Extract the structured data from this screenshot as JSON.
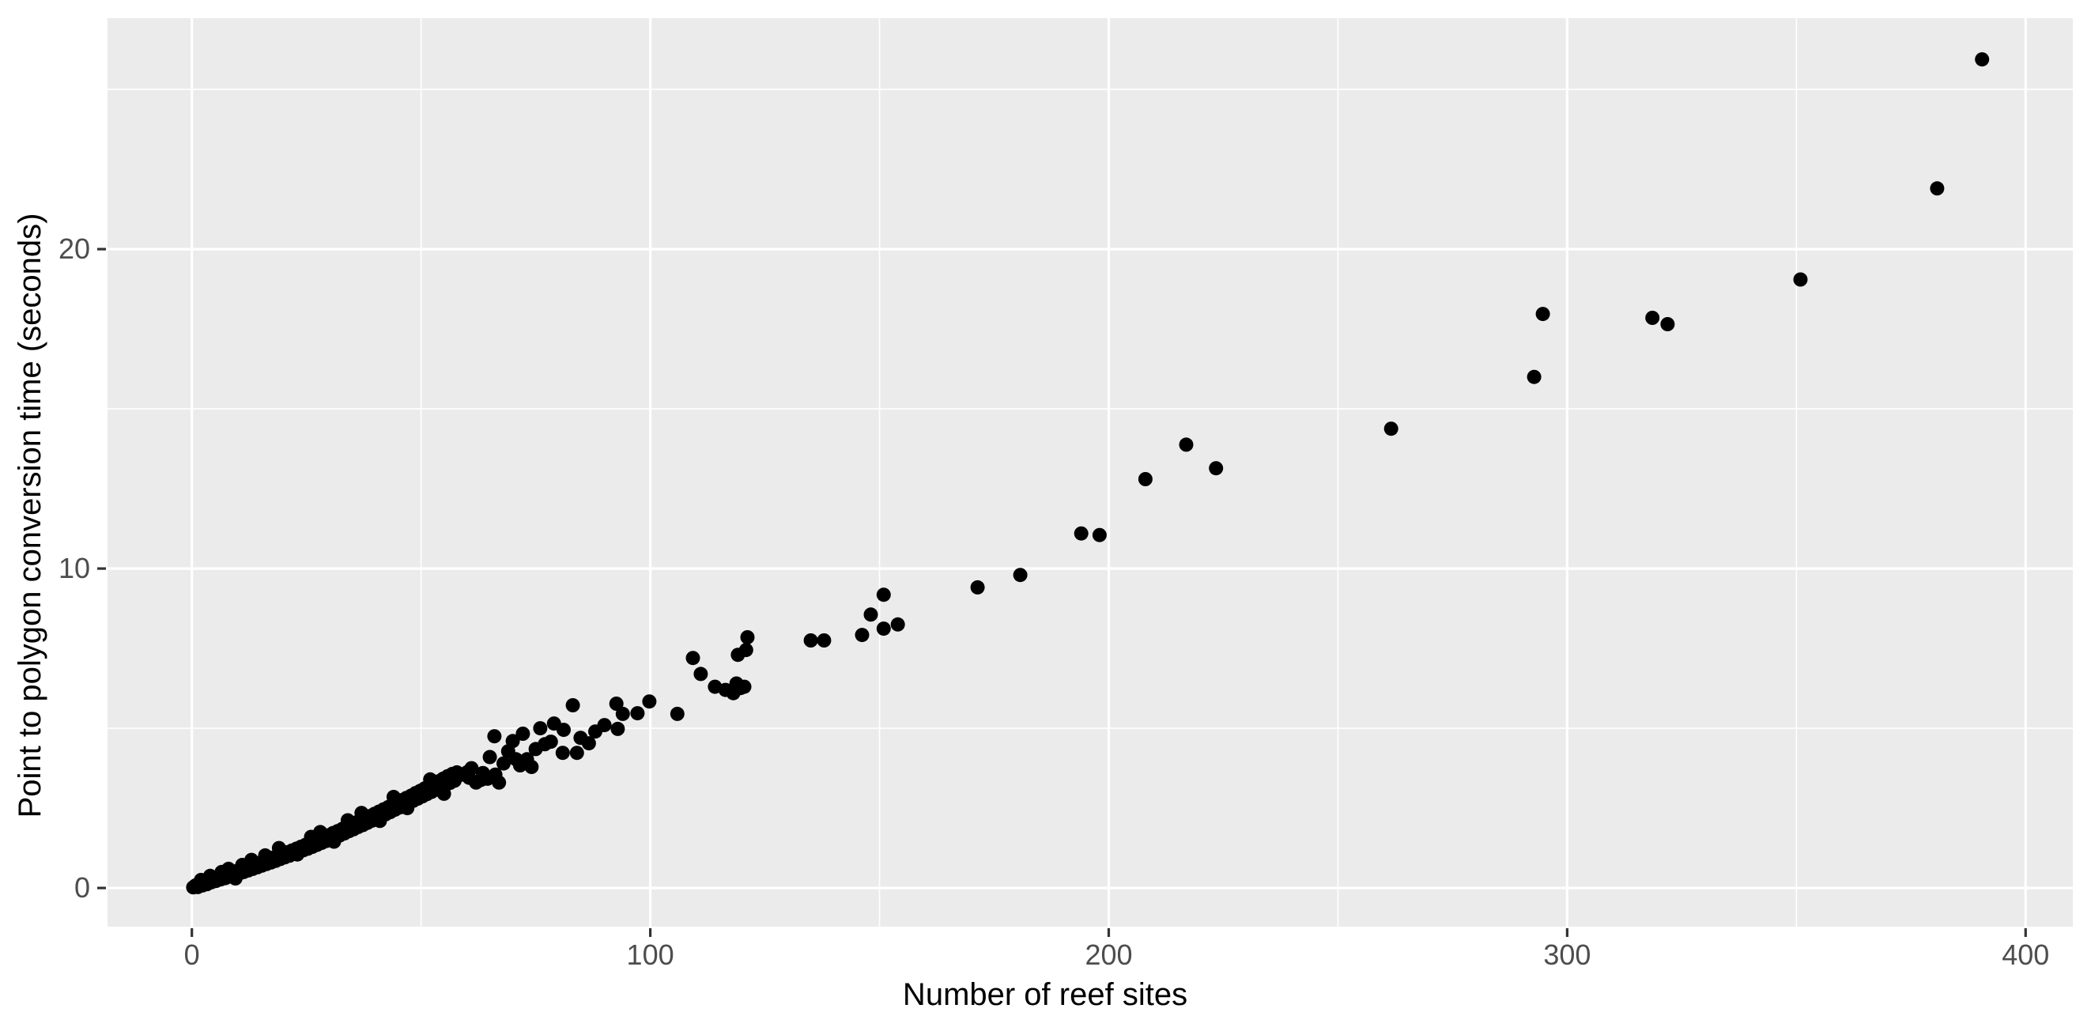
{
  "figure": {
    "background": "#FFFFFF",
    "panel_background": "#EBEBEB",
    "grid_color": "#FFFFFF",
    "tick_mark_color": "#333333",
    "tick_label_color": "#4D4D4D",
    "axis_title_color": "#000000",
    "point_color": "#000000"
  },
  "chart_data": {
    "type": "scatter",
    "title": "",
    "xlabel": "Number of reef sites",
    "ylabel": "Point to polygon conversion time (seconds)",
    "xlim": [
      -18.4,
      410.3
    ],
    "ylim": [
      -1.21,
      27.23
    ],
    "x_major_ticks": [
      0,
      100,
      200,
      300,
      400
    ],
    "x_tick_labels": [
      "0",
      "100",
      "200",
      "300",
      "400"
    ],
    "x_minor_ticks": [
      50,
      150,
      250,
      350
    ],
    "y_major_ticks": [
      0,
      10,
      20
    ],
    "y_tick_labels": [
      "0",
      "10",
      "20"
    ],
    "y_minor_ticks": [
      5,
      15,
      25
    ],
    "grid": "major+minor",
    "legend_position": "none",
    "marker": {
      "shape": "circle",
      "radius_px": 9,
      "color": "#000000"
    },
    "points": [
      [
        0.3,
        0.02
      ],
      [
        0.8,
        0.08
      ],
      [
        1.3,
        0.03
      ],
      [
        1.8,
        0.12
      ],
      [
        2,
        0.25
      ],
      [
        2.3,
        0.08
      ],
      [
        2.8,
        0.18
      ],
      [
        3,
        0.17
      ],
      [
        3.3,
        0.12
      ],
      [
        3.8,
        0.24
      ],
      [
        4,
        0.38
      ],
      [
        4.3,
        0.18
      ],
      [
        4.8,
        0.28
      ],
      [
        5.3,
        0.22
      ],
      [
        5.8,
        0.33
      ],
      [
        6,
        0.3
      ],
      [
        6.3,
        0.27
      ],
      [
        6.5,
        0.5
      ],
      [
        6.8,
        0.38
      ],
      [
        7.3,
        0.31
      ],
      [
        7.8,
        0.43
      ],
      [
        8,
        0.6
      ],
      [
        8.3,
        0.36
      ],
      [
        8.8,
        0.48
      ],
      [
        9,
        0.45
      ],
      [
        9.3,
        0.41
      ],
      [
        9.5,
        0.3
      ],
      [
        9.8,
        0.53
      ],
      [
        10.3,
        0.45
      ],
      [
        10.8,
        0.58
      ],
      [
        11,
        0.72
      ],
      [
        11.3,
        0.5
      ],
      [
        11.8,
        0.63
      ],
      [
        12,
        0.6
      ],
      [
        12.3,
        0.55
      ],
      [
        12.8,
        0.68
      ],
      [
        13,
        0.88
      ],
      [
        13.3,
        0.6
      ],
      [
        13.8,
        0.73
      ],
      [
        14.3,
        0.65
      ],
      [
        14.8,
        0.78
      ],
      [
        15,
        0.76
      ],
      [
        15.3,
        0.7
      ],
      [
        15.8,
        0.84
      ],
      [
        16,
        1.02
      ],
      [
        16.3,
        0.75
      ],
      [
        16.8,
        0.89
      ],
      [
        17.3,
        0.8
      ],
      [
        17.8,
        0.95
      ],
      [
        18,
        0.92
      ],
      [
        18.3,
        0.85
      ],
      [
        18.8,
        1.0
      ],
      [
        19,
        1.25
      ],
      [
        19.3,
        0.91
      ],
      [
        19.8,
        1.06
      ],
      [
        20.3,
        0.96
      ],
      [
        20.8,
        1.12
      ],
      [
        21,
        1.08
      ],
      [
        21.3,
        1.01
      ],
      [
        21.8,
        1.17
      ],
      [
        22.3,
        1.07
      ],
      [
        22.8,
        1.23
      ],
      [
        23,
        1.05
      ],
      [
        23.3,
        1.12
      ],
      [
        23.8,
        1.29
      ],
      [
        24,
        1.25
      ],
      [
        24.3,
        1.18
      ],
      [
        24.8,
        1.35
      ],
      [
        25.3,
        1.23
      ],
      [
        25.8,
        1.41
      ],
      [
        26,
        1.6
      ],
      [
        26.3,
        1.29
      ],
      [
        26.8,
        1.47
      ],
      [
        27,
        1.42
      ],
      [
        27.3,
        1.35
      ],
      [
        27.8,
        1.53
      ],
      [
        28,
        1.75
      ],
      [
        28.3,
        1.41
      ],
      [
        28.8,
        1.59
      ],
      [
        29.3,
        1.47
      ],
      [
        29.8,
        1.65
      ],
      [
        30,
        1.6
      ],
      [
        30.3,
        1.53
      ],
      [
        30.8,
        1.72
      ],
      [
        31,
        1.45
      ],
      [
        31.3,
        1.59
      ],
      [
        31.8,
        1.78
      ],
      [
        32.3,
        1.65
      ],
      [
        32.8,
        1.85
      ],
      [
        33,
        1.78
      ],
      [
        33.3,
        1.71
      ],
      [
        33.8,
        1.91
      ],
      [
        34,
        2.12
      ],
      [
        34.3,
        1.78
      ],
      [
        34.8,
        1.98
      ],
      [
        35.3,
        1.84
      ],
      [
        35.8,
        2.05
      ],
      [
        36,
        1.97
      ],
      [
        36.3,
        1.91
      ],
      [
        36.8,
        2.11
      ],
      [
        37,
        2.35
      ],
      [
        37.3,
        1.97
      ],
      [
        37.8,
        2.18
      ],
      [
        38.3,
        2.04
      ],
      [
        38.8,
        2.25
      ],
      [
        39,
        2.16
      ],
      [
        39.3,
        2.11
      ],
      [
        39.8,
        2.32
      ],
      [
        40.3,
        2.17
      ],
      [
        40.8,
        2.39
      ],
      [
        41,
        2.1
      ],
      [
        41.3,
        2.24
      ],
      [
        41.8,
        2.46
      ],
      [
        42,
        2.36
      ],
      [
        42.3,
        2.31
      ],
      [
        42.8,
        2.53
      ],
      [
        43.3,
        2.38
      ],
      [
        43.8,
        2.6
      ],
      [
        44,
        2.85
      ],
      [
        44.3,
        2.45
      ],
      [
        44.8,
        2.67
      ],
      [
        45,
        2.56
      ],
      [
        45.3,
        2.52
      ],
      [
        45.8,
        2.75
      ],
      [
        46.3,
        2.59
      ],
      [
        46.8,
        2.82
      ],
      [
        47,
        2.5
      ],
      [
        47.3,
        2.66
      ],
      [
        47.8,
        2.89
      ],
      [
        48,
        2.77
      ],
      [
        48.3,
        2.73
      ],
      [
        48.8,
        2.97
      ],
      [
        49.3,
        2.8
      ],
      [
        49.8,
        3.04
      ],
      [
        50.3,
        2.87
      ],
      [
        50.8,
        3.12
      ],
      [
        51,
        2.98
      ],
      [
        51.3,
        2.94
      ],
      [
        51.8,
        3.19
      ],
      [
        52,
        3.4
      ],
      [
        52.3,
        3.01
      ],
      [
        52.8,
        3.27
      ],
      [
        53.3,
        3.08
      ],
      [
        53.8,
        3.34
      ],
      [
        54,
        3.2
      ],
      [
        54.3,
        3.15
      ],
      [
        54.8,
        3.42
      ],
      [
        55,
        2.95
      ],
      [
        55.3,
        3.22
      ],
      [
        55.8,
        3.5
      ],
      [
        56.3,
        3.29
      ],
      [
        56.8,
        3.57
      ],
      [
        57,
        3.42
      ],
      [
        57.3,
        3.36
      ],
      [
        57.8,
        3.62
      ],
      [
        59,
        3.55
      ],
      [
        60,
        3.62
      ],
      [
        60.5,
        3.45
      ],
      [
        61,
        3.75
      ],
      [
        62,
        3.3
      ],
      [
        63,
        3.38
      ],
      [
        63.5,
        3.6
      ],
      [
        64.5,
        3.42
      ],
      [
        65,
        4.1
      ],
      [
        66,
        4.75
      ],
      [
        66.2,
        3.55
      ],
      [
        67,
        3.3
      ],
      [
        68,
        3.9
      ],
      [
        69,
        4.28
      ],
      [
        70,
        4.6
      ],
      [
        70.7,
        4.03
      ],
      [
        71.6,
        3.84
      ],
      [
        72.2,
        4.83
      ],
      [
        72.8,
        3.96
      ],
      [
        73.1,
        4.03
      ],
      [
        74.1,
        3.79
      ],
      [
        75,
        4.35
      ],
      [
        76,
        5.0
      ],
      [
        77,
        4.5
      ],
      [
        78.3,
        4.58
      ],
      [
        79,
        5.15
      ],
      [
        80.9,
        4.23
      ],
      [
        81.1,
        4.95
      ],
      [
        83.1,
        5.72
      ],
      [
        84,
        4.23
      ],
      [
        84.8,
        4.7
      ],
      [
        86.6,
        4.53
      ],
      [
        88,
        4.9
      ],
      [
        90,
        5.1
      ],
      [
        92.6,
        5.77
      ],
      [
        92.9,
        4.98
      ],
      [
        94,
        5.45
      ],
      [
        97.2,
        5.47
      ],
      [
        99.8,
        5.84
      ],
      [
        105.9,
        5.45
      ],
      [
        109.3,
        7.2
      ],
      [
        111,
        6.7
      ],
      [
        114.1,
        6.3
      ],
      [
        116.4,
        6.2
      ],
      [
        118.1,
        6.1
      ],
      [
        118.8,
        6.4
      ],
      [
        119.7,
        6.26
      ],
      [
        120.5,
        6.3
      ],
      [
        119.1,
        7.3
      ],
      [
        120.9,
        7.45
      ],
      [
        121.2,
        7.85
      ],
      [
        135,
        7.75
      ],
      [
        137.9,
        7.75
      ],
      [
        146.2,
        7.92
      ],
      [
        148.1,
        8.56
      ],
      [
        150.9,
        9.18
      ],
      [
        150.9,
        8.12
      ],
      [
        154,
        8.25
      ],
      [
        171.4,
        9.41
      ],
      [
        180.7,
        9.8
      ],
      [
        194,
        11.1
      ],
      [
        198,
        11.05
      ],
      [
        208,
        12.8
      ],
      [
        216.9,
        13.88
      ],
      [
        223.4,
        13.14
      ],
      [
        261.6,
        14.38
      ],
      [
        292.8,
        16.0
      ],
      [
        294.7,
        17.97
      ],
      [
        318.6,
        17.85
      ],
      [
        321.9,
        17.65
      ],
      [
        350.9,
        19.05
      ],
      [
        380.7,
        21.9
      ],
      [
        390.5,
        25.94
      ]
    ]
  }
}
